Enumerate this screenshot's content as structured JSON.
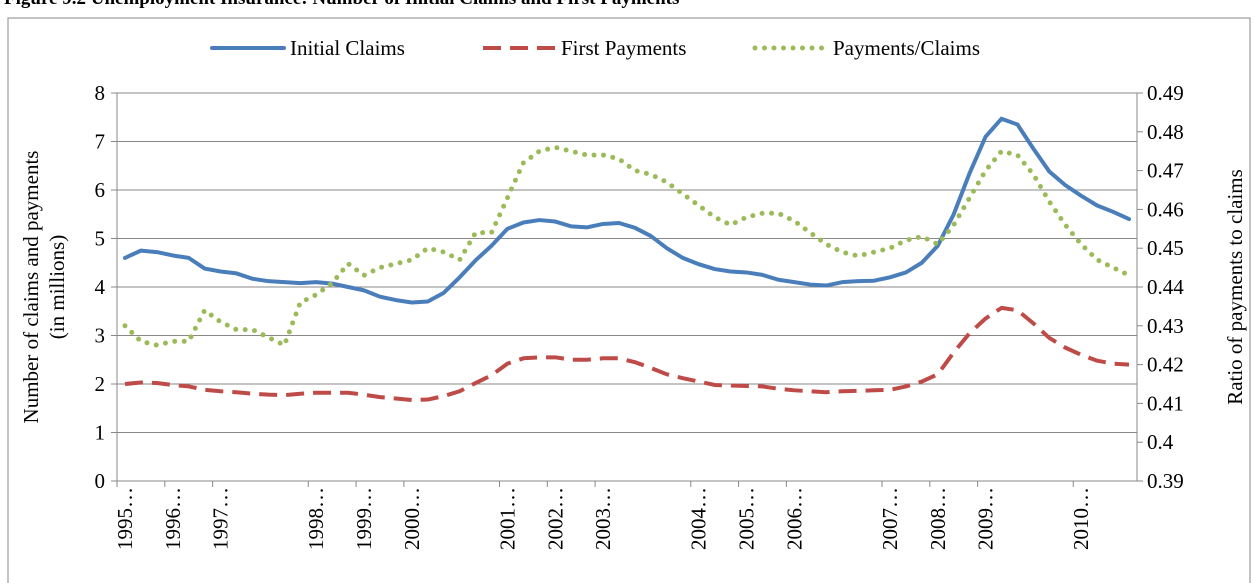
{
  "chart_data": {
    "type": "line",
    "title": "Figure 9.2 Unemployment Insurance: Number of Initial Claims and First Payments",
    "ylabel": [
      "Number of claims and payments",
      "(in millions)"
    ],
    "y2label": "Ratio of payments to claims",
    "categories": [
      "1995…",
      null,
      null,
      "1996…",
      null,
      null,
      "1997…",
      null,
      null,
      null,
      null,
      null,
      "1998…",
      null,
      null,
      "1999…",
      null,
      null,
      "2000…",
      null,
      null,
      null,
      null,
      null,
      "2001…",
      null,
      null,
      "2002…",
      null,
      null,
      "2003…",
      null,
      null,
      null,
      null,
      null,
      "2004…",
      null,
      null,
      "2005…",
      null,
      null,
      "2006…",
      null,
      null,
      null,
      null,
      null,
      "2007…",
      null,
      null,
      "2008…",
      null,
      null,
      "2009…",
      null,
      null,
      null,
      null,
      null,
      "2010…",
      null,
      null,
      null
    ],
    "ylim": [
      0,
      8
    ],
    "yticks": [
      0,
      1,
      2,
      3,
      4,
      5,
      6,
      7,
      8
    ],
    "y2lim": [
      0.39,
      0.49
    ],
    "y2ticks": [
      0.39,
      0.4,
      0.41,
      0.42,
      0.43,
      0.44,
      0.45,
      0.46,
      0.47,
      0.48,
      0.49
    ],
    "grid": true,
    "legend": "top",
    "series": [
      {
        "name": "Initial Claims",
        "color": "#4a7ebb",
        "style": "solid",
        "values": [
          4.6,
          4.75,
          4.72,
          4.65,
          4.6,
          4.38,
          4.32,
          4.28,
          4.17,
          4.12,
          4.1,
          4.08,
          4.1,
          4.07,
          4.0,
          3.93,
          3.8,
          3.73,
          3.68,
          3.7,
          3.88,
          4.2,
          4.55,
          4.85,
          5.2,
          5.33,
          5.38,
          5.35,
          5.25,
          5.23,
          5.3,
          5.32,
          5.22,
          5.05,
          4.8,
          4.6,
          4.47,
          4.37,
          4.32,
          4.3,
          4.25,
          4.15,
          4.1,
          4.05,
          4.03,
          4.1,
          4.12,
          4.13,
          4.2,
          4.3,
          4.5,
          4.85,
          5.5,
          6.35,
          7.1,
          7.47,
          7.35,
          6.85,
          6.38,
          6.1,
          5.88,
          5.68,
          5.55,
          5.4
        ]
      },
      {
        "name": "First Payments",
        "color": "#be4b48",
        "style": "dashed",
        "values": [
          2.0,
          2.03,
          2.02,
          1.98,
          1.95,
          1.88,
          1.85,
          1.83,
          1.8,
          1.78,
          1.77,
          1.8,
          1.82,
          1.82,
          1.82,
          1.78,
          1.73,
          1.7,
          1.67,
          1.68,
          1.75,
          1.85,
          2.02,
          2.18,
          2.42,
          2.53,
          2.55,
          2.55,
          2.5,
          2.5,
          2.53,
          2.53,
          2.45,
          2.33,
          2.2,
          2.12,
          2.05,
          1.98,
          1.97,
          1.96,
          1.95,
          1.9,
          1.87,
          1.85,
          1.83,
          1.85,
          1.86,
          1.87,
          1.88,
          1.95,
          2.05,
          2.2,
          2.65,
          3.05,
          3.35,
          3.57,
          3.52,
          3.25,
          2.95,
          2.75,
          2.6,
          2.48,
          2.42,
          2.4
        ]
      },
      {
        "name": "Payments/Claims",
        "color": "#9bbb59",
        "style": "dotted",
        "axis": "y2",
        "values": [
          0.43,
          0.426,
          0.425,
          0.426,
          0.426,
          0.434,
          0.431,
          0.429,
          0.429,
          0.427,
          0.425,
          0.436,
          0.438,
          0.441,
          0.446,
          0.443,
          0.445,
          0.446,
          0.447,
          0.45,
          0.449,
          0.447,
          0.454,
          0.454,
          0.463,
          0.472,
          0.475,
          0.476,
          0.475,
          0.474,
          0.474,
          0.473,
          0.47,
          0.469,
          0.467,
          0.464,
          0.461,
          0.458,
          0.456,
          0.458,
          0.459,
          0.459,
          0.457,
          0.454,
          0.451,
          0.449,
          0.448,
          0.449,
          0.45,
          0.452,
          0.453,
          0.451,
          0.456,
          0.463,
          0.47,
          0.475,
          0.474,
          0.469,
          0.462,
          0.456,
          0.451,
          0.447,
          0.445,
          0.443
        ]
      }
    ]
  }
}
